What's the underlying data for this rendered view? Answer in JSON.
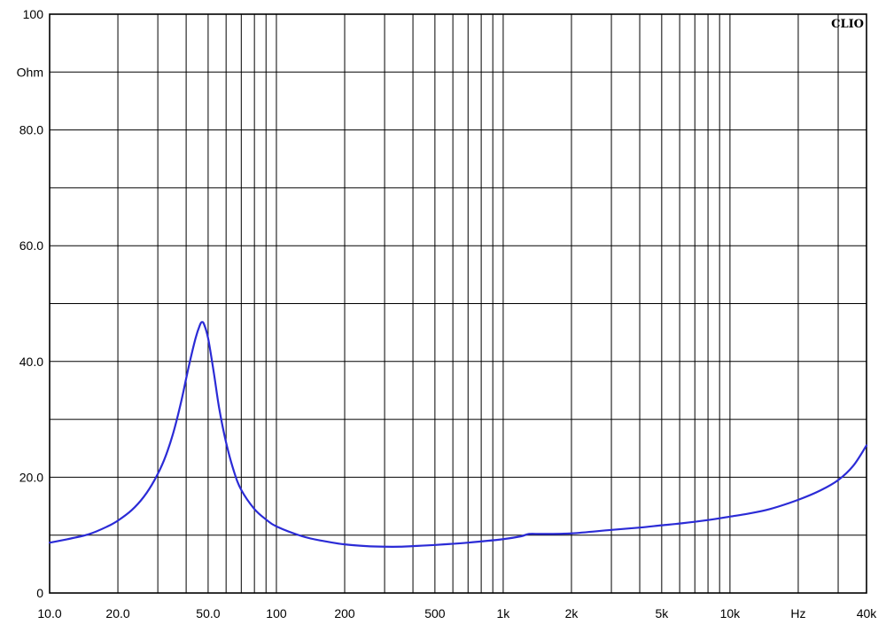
{
  "chart_data": {
    "type": "line",
    "title": "",
    "brand_label": "CLIO",
    "xlabel": "Hz",
    "ylabel": "Ohm",
    "x_scale": "log",
    "xlim": [
      10,
      40000
    ],
    "ylim": [
      0,
      100
    ],
    "grid": true,
    "x_tick_labels": [
      {
        "value": 10,
        "label": "10.0"
      },
      {
        "value": 20,
        "label": "20.0"
      },
      {
        "value": 50,
        "label": "50.0"
      },
      {
        "value": 100,
        "label": "100"
      },
      {
        "value": 200,
        "label": "200"
      },
      {
        "value": 500,
        "label": "500"
      },
      {
        "value": 1000,
        "label": "1k"
      },
      {
        "value": 2000,
        "label": "2k"
      },
      {
        "value": 5000,
        "label": "5k"
      },
      {
        "value": 10000,
        "label": "10k"
      },
      {
        "value": 20000,
        "label": "Hz"
      },
      {
        "value": 40000,
        "label": "40k"
      }
    ],
    "y_tick_labels": [
      {
        "value": 0,
        "label": "0"
      },
      {
        "value": 20,
        "label": "20.0"
      },
      {
        "value": 40,
        "label": "40.0"
      },
      {
        "value": 60,
        "label": "60.0"
      },
      {
        "value": 80,
        "label": "80.0"
      },
      {
        "value": 90,
        "label": "Ohm"
      },
      {
        "value": 100,
        "label": "100"
      }
    ],
    "series": [
      {
        "color": "#2b2bd6",
        "points": [
          [
            10,
            8.7
          ],
          [
            12,
            9.3
          ],
          [
            15,
            10.2
          ],
          [
            18,
            11.5
          ],
          [
            20,
            12.5
          ],
          [
            23,
            14.3
          ],
          [
            26,
            16.6
          ],
          [
            29,
            19.5
          ],
          [
            32,
            23.0
          ],
          [
            35,
            27.5
          ],
          [
            38,
            33.0
          ],
          [
            41,
            39.0
          ],
          [
            44,
            44.0
          ],
          [
            46,
            46.3
          ],
          [
            47,
            46.8
          ],
          [
            48,
            46.4
          ],
          [
            50,
            44.0
          ],
          [
            53,
            38.0
          ],
          [
            56,
            31.8
          ],
          [
            60,
            26.0
          ],
          [
            65,
            21.0
          ],
          [
            70,
            17.8
          ],
          [
            80,
            14.5
          ],
          [
            90,
            12.7
          ],
          [
            100,
            11.5
          ],
          [
            130,
            9.8
          ],
          [
            160,
            9.0
          ],
          [
            200,
            8.4
          ],
          [
            250,
            8.1
          ],
          [
            300,
            8.0
          ],
          [
            350,
            8.0
          ],
          [
            400,
            8.1
          ],
          [
            500,
            8.3
          ],
          [
            700,
            8.7
          ],
          [
            1000,
            9.3
          ],
          [
            1200,
            9.8
          ],
          [
            1300,
            10.2
          ],
          [
            1500,
            10.2
          ],
          [
            2000,
            10.3
          ],
          [
            3000,
            10.9
          ],
          [
            4000,
            11.3
          ],
          [
            5000,
            11.7
          ],
          [
            6000,
            12.0
          ],
          [
            8000,
            12.6
          ],
          [
            10000,
            13.2
          ],
          [
            12000,
            13.7
          ],
          [
            15000,
            14.5
          ],
          [
            20000,
            16.1
          ],
          [
            25000,
            17.7
          ],
          [
            30000,
            19.5
          ],
          [
            35000,
            22.0
          ],
          [
            40000,
            25.5
          ]
        ]
      }
    ]
  }
}
